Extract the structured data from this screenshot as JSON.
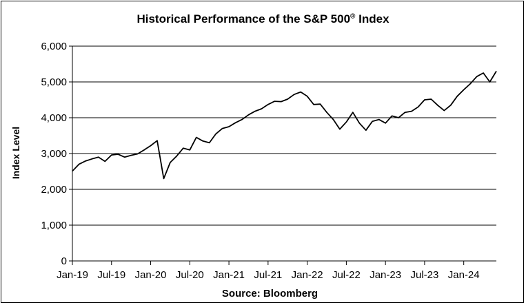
{
  "chart_data": {
    "type": "line",
    "title": "Historical Performance of the S&P 500",
    "title_superscript": "®",
    "title_suffix": " Index",
    "ylabel": "Index Level",
    "xlabel": "",
    "source": "Source: Bloomberg",
    "ylim": [
      0,
      6000
    ],
    "yticks": [
      0,
      1000,
      2000,
      3000,
      4000,
      5000,
      6000
    ],
    "ytick_labels": [
      "0",
      "1,000",
      "2,000",
      "3,000",
      "4,000",
      "5,000",
      "6,000"
    ],
    "xticks": [
      "2019-01",
      "2019-07",
      "2020-01",
      "2020-07",
      "2021-01",
      "2021-07",
      "2022-01",
      "2022-07",
      "2023-01",
      "2023-07",
      "2024-01"
    ],
    "xtick_labels": [
      "Jan-19",
      "Jul-19",
      "Jan-20",
      "Jul-20",
      "Jan-21",
      "Jul-21",
      "Jan-22",
      "Jul-22",
      "Jan-23",
      "Jul-23",
      "Jan-24"
    ],
    "xlim": [
      "2019-01",
      "2024-06"
    ],
    "grid": "horizontal",
    "line_color": "#000000",
    "series": [
      {
        "x": [
          "2019-01",
          "2019-02",
          "2019-03",
          "2019-04",
          "2019-05",
          "2019-06",
          "2019-07",
          "2019-08",
          "2019-09",
          "2019-10",
          "2019-11",
          "2019-12",
          "2020-01",
          "2020-02",
          "2020-03",
          "2020-04",
          "2020-05",
          "2020-06",
          "2020-07",
          "2020-08",
          "2020-09",
          "2020-10",
          "2020-11",
          "2020-12",
          "2021-01",
          "2021-02",
          "2021-03",
          "2021-04",
          "2021-05",
          "2021-06",
          "2021-07",
          "2021-08",
          "2021-09",
          "2021-10",
          "2021-11",
          "2021-12",
          "2022-01",
          "2022-02",
          "2022-03",
          "2022-04",
          "2022-05",
          "2022-06",
          "2022-07",
          "2022-08",
          "2022-09",
          "2022-10",
          "2022-11",
          "2022-12",
          "2023-01",
          "2023-02",
          "2023-03",
          "2023-04",
          "2023-05",
          "2023-06",
          "2023-07",
          "2023-08",
          "2023-09",
          "2023-10",
          "2023-11",
          "2023-12",
          "2024-01",
          "2024-02",
          "2024-03",
          "2024-04",
          "2024-05",
          "2024-06"
        ],
        "values": [
          2510,
          2700,
          2790,
          2850,
          2900,
          2780,
          2960,
          2980,
          2900,
          2950,
          2990,
          3100,
          3220,
          3360,
          2300,
          2750,
          2930,
          3150,
          3100,
          3450,
          3350,
          3300,
          3550,
          3700,
          3750,
          3860,
          3950,
          4080,
          4180,
          4250,
          4370,
          4460,
          4450,
          4520,
          4650,
          4720,
          4600,
          4370,
          4380,
          4150,
          3950,
          3680,
          3880,
          4150,
          3850,
          3650,
          3900,
          3950,
          3850,
          4050,
          4000,
          4150,
          4180,
          4300,
          4500,
          4520,
          4350,
          4200,
          4350,
          4600,
          4780,
          4950,
          5150,
          5250,
          5000,
          5300
        ]
      }
    ]
  }
}
